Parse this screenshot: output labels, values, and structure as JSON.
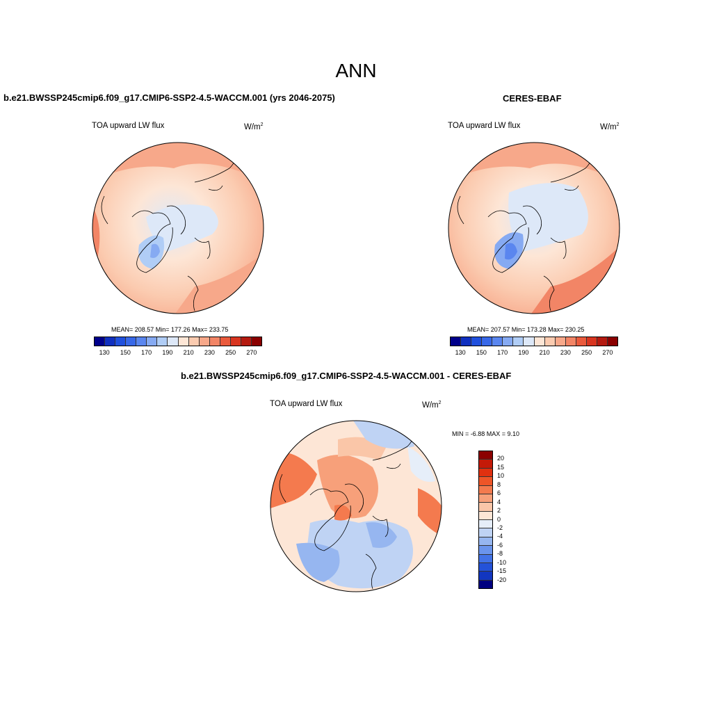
{
  "figure": {
    "title": "ANN"
  },
  "panels": [
    {
      "title": "b.e21.BWSSP245cmip6.f09_g17.CMIP6-SSP2-4.5-WACCM.001 (yrs 2046-2075)",
      "variable": "TOA upward LW flux",
      "unit_base": "W/m",
      "unit_exp": "2",
      "stats": "MEAN= 208.57  Min= 177.26  Max= 233.75"
    },
    {
      "title": "CERES-EBAF",
      "variable": "TOA upward LW flux",
      "unit_base": "W/m",
      "unit_exp": "2",
      "stats": "MEAN= 207.57  Min= 173.28  Max= 230.25"
    },
    {
      "title": "b.e21.BWSSP245cmip6.f09_g17.CMIP6-SSP2-4.5-WACCM.001 - CERES-EBAF",
      "variable": "TOA upward LW flux",
      "unit_base": "W/m",
      "unit_exp": "2",
      "stats": "MIN =  -6.88 MAX =   9.10"
    }
  ],
  "colorbar_abs": {
    "colors": [
      "#00008b",
      "#1030c0",
      "#2050dd",
      "#3868e8",
      "#5a86ef",
      "#86aaf2",
      "#b0cdf6",
      "#dde8f8",
      "#fde6d6",
      "#fbcbb0",
      "#f7a88a",
      "#f28566",
      "#ea5a3c",
      "#d83520",
      "#b41a10",
      "#8a0000"
    ],
    "labels": [
      "130",
      "150",
      "170",
      "190",
      "210",
      "230",
      "250",
      "270"
    ]
  },
  "colorbar_diff": {
    "colors": [
      "#8b0000",
      "#c41a08",
      "#e03010",
      "#ee5528",
      "#f47a4e",
      "#f7a07a",
      "#fac6a8",
      "#fde6d6",
      "#e6eef9",
      "#bfd3f4",
      "#96b6f0",
      "#6a94ec",
      "#4272e6",
      "#2452d8",
      "#1236c0",
      "#000080"
    ],
    "labels": [
      "20",
      "15",
      "10",
      "8",
      "6",
      "4",
      "2",
      "0",
      "-2",
      "-4",
      "-6",
      "-8",
      "-10",
      "-15",
      "-20"
    ]
  }
}
